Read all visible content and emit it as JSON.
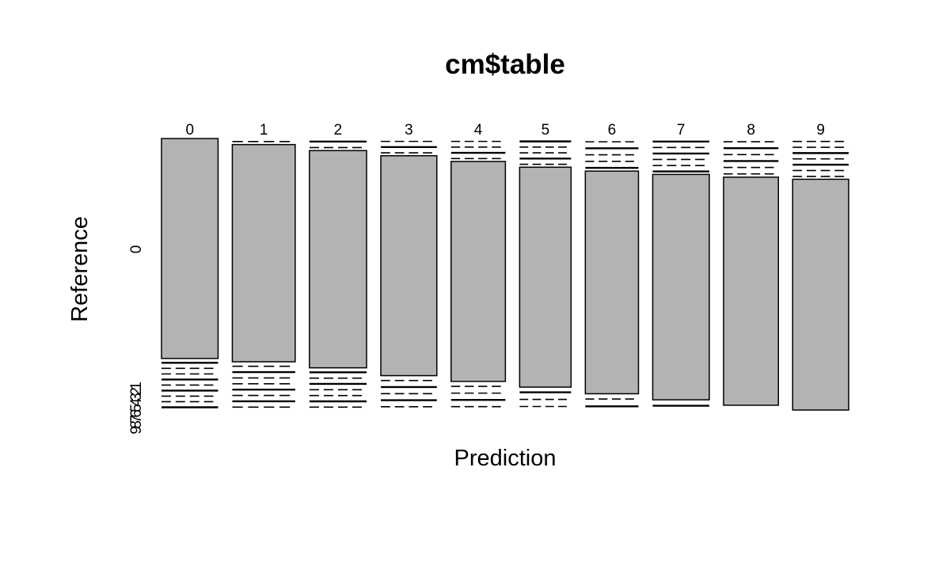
{
  "chart_data": {
    "type": "mosaic",
    "title": "cm$table",
    "xlabel": "Prediction",
    "ylabel": "Reference",
    "x_categories": [
      "0",
      "1",
      "2",
      "3",
      "4",
      "5",
      "6",
      "7",
      "8",
      "9"
    ],
    "y_categories": [
      "0",
      "1",
      "2",
      "3",
      "4",
      "5",
      "6",
      "7",
      "8",
      "9"
    ],
    "column_widths": [
      0.99,
      1.1,
      1.0,
      0.98,
      0.95,
      0.9,
      0.93,
      0.99,
      0.96,
      0.98
    ],
    "columns": [
      {
        "prediction": "0",
        "reference_0_share": 0.81
      },
      {
        "prediction": "1",
        "reference_0_share": 0.8
      },
      {
        "prediction": "2",
        "reference_0_share": 0.8
      },
      {
        "prediction": "3",
        "reference_0_share": 0.81
      },
      {
        "prediction": "4",
        "reference_0_share": 0.81
      },
      {
        "prediction": "5",
        "reference_0_share": 0.81
      },
      {
        "prediction": "6",
        "reference_0_share": 0.82
      },
      {
        "prediction": "7",
        "reference_0_share": 0.83
      },
      {
        "prediction": "8",
        "reference_0_share": 0.84
      },
      {
        "prediction": "9",
        "reference_0_share": 0.85
      }
    ],
    "fill_color": "#b3b3b3",
    "line_color": "#000000"
  }
}
